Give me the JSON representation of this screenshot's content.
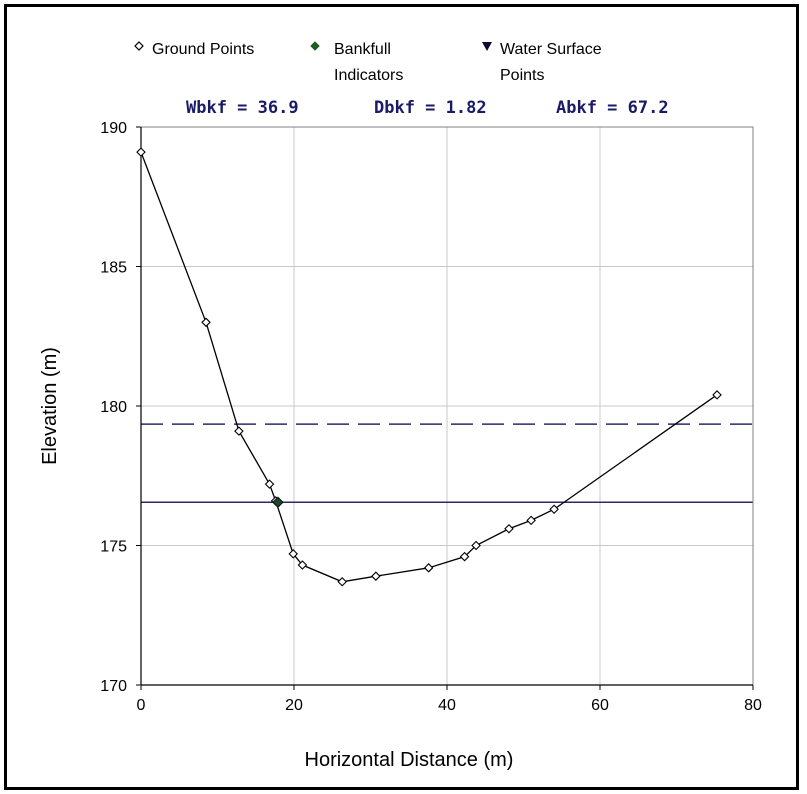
{
  "chart_data": {
    "type": "scatter",
    "xlabel": "Horizontal Distance (m)",
    "ylabel": "Elevation (m)",
    "xlim": [
      0,
      80
    ],
    "ylim": [
      170,
      190
    ],
    "xticks": [
      "0",
      "20",
      "40",
      "60",
      "80"
    ],
    "yticks": [
      "170",
      "175",
      "180",
      "185",
      "190"
    ],
    "grid": true,
    "legend": [
      {
        "marker": "open-diamond",
        "lines": [
          "Ground Points"
        ]
      },
      {
        "marker": "filled-diamond",
        "lines": [
          "Bankfull",
          "Indicators"
        ]
      },
      {
        "marker": "filled-triangle-down",
        "lines": [
          "Water Surface",
          "Points"
        ]
      }
    ],
    "stats": {
      "wbkf": "Wbkf = 36.9",
      "dbkf": "Dbkf = 1.82",
      "abkf": "Abkf = 67.2"
    },
    "series": [
      {
        "name": "Ground Points",
        "x": [
          0,
          8.5,
          12.8,
          16.8,
          17.6,
          19.9,
          21.1,
          26.3,
          30.7,
          37.6,
          42.3,
          43.8,
          48.1,
          51.0,
          54.0,
          75.3
        ],
        "y": [
          189.1,
          183.0,
          179.1,
          177.2,
          176.6,
          174.7,
          174.3,
          173.7,
          173.9,
          174.2,
          174.6,
          175.0,
          175.6,
          175.9,
          176.3,
          180.4
        ]
      },
      {
        "name": "Bankfull Indicators",
        "x": [
          17.9
        ],
        "y": [
          176.55
        ]
      }
    ],
    "reference_lines": [
      {
        "kind": "water-surface",
        "style": "solid",
        "y": 176.55
      },
      {
        "kind": "bankfull-flood",
        "style": "dashed",
        "y": 179.35
      }
    ]
  }
}
